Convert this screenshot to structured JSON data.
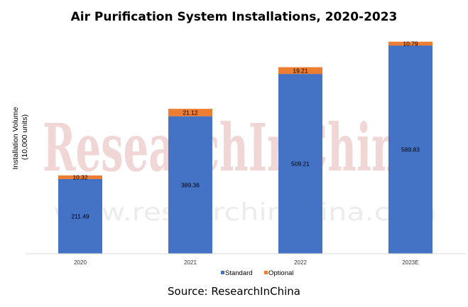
{
  "chart_data": {
    "type": "bar",
    "stacked": true,
    "title": "Air Purification System Installations, 2020-2023",
    "ylabel": "Installation Volume\n(10,000 units)",
    "xlabel": "",
    "categories": [
      "2020",
      "2021",
      "2022",
      "2023E"
    ],
    "series": [
      {
        "name": "Standard",
        "values": [
          211.49,
          389.36,
          509.21,
          589.83
        ],
        "labels": [
          "211.49",
          "389.36",
          "509.21",
          "589.83"
        ],
        "color": "#4472C4"
      },
      {
        "name": "Optional",
        "values": [
          10.32,
          21.12,
          19.21,
          10.79
        ],
        "labels": [
          "10.32",
          "21.12",
          "19.21",
          "10.79"
        ],
        "color": "#ED7D31"
      }
    ],
    "ylim": [
      0,
      606
    ],
    "grid": false,
    "legend": "bottom"
  },
  "source": "Source: ResearchInChina",
  "watermark": {
    "logo": "ResearchInChina",
    "url": "www.researchinchina.com"
  }
}
